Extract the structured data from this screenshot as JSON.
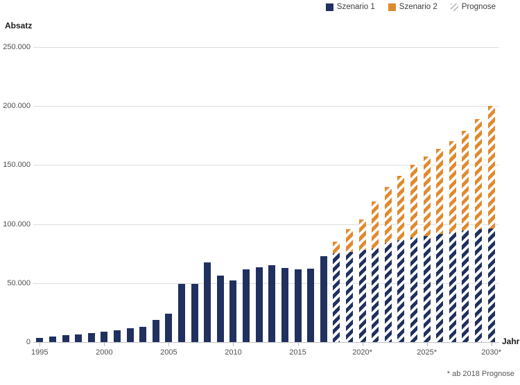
{
  "page": {
    "y_axis_title": "Absatz",
    "x_axis_title": "Jahr",
    "footnote": "* ab 2018 Prognose"
  },
  "legend": [
    {
      "label": "Szenario 1",
      "swatch": "scenario1"
    },
    {
      "label": "Szenario 2",
      "swatch": "scenario2"
    },
    {
      "label": "Prognose",
      "swatch": "hatch"
    }
  ],
  "colors": {
    "scenario1": "#20305f",
    "scenario2": "#e08a2e",
    "hatch_legend_stripe": "#b0b0b0",
    "gridline": "#dcdcdc",
    "axis_line": "#c4c4c4",
    "tick_text": "#4f4f4f"
  },
  "chart_data": {
    "type": "bar",
    "stacked": true,
    "title": "",
    "xlabel": "Jahr",
    "ylabel": "Absatz",
    "ylim": [
      0,
      250000
    ],
    "grid": true,
    "legend_position": "top-right",
    "x": [
      1995,
      1996,
      1997,
      1998,
      1999,
      2000,
      2001,
      2002,
      2003,
      2004,
      2005,
      2006,
      2007,
      2008,
      2009,
      2010,
      2011,
      2012,
      2013,
      2014,
      2015,
      2016,
      2017,
      2018,
      2019,
      2020,
      2021,
      2022,
      2023,
      2024,
      2025,
      2026,
      2027,
      2028,
      2029,
      2030
    ],
    "series": [
      {
        "name": "Szenario 1",
        "color_key": "scenario1",
        "values": [
          3500,
          4500,
          5700,
          6700,
          7600,
          8800,
          10200,
          11500,
          12700,
          19000,
          24000,
          49500,
          49500,
          67500,
          56500,
          52500,
          61500,
          63500,
          65000,
          63000,
          61500,
          62500,
          73000,
          75000,
          76500,
          78000,
          79000,
          84000,
          86000,
          88500,
          89500,
          91500,
          93000,
          94500,
          95500,
          96000
        ]
      },
      {
        "name": "Szenario 2",
        "color_key": "scenario2",
        "values": [
          0,
          0,
          0,
          0,
          0,
          0,
          0,
          0,
          0,
          0,
          0,
          0,
          0,
          0,
          0,
          0,
          0,
          0,
          0,
          0,
          0,
          0,
          0,
          10000,
          19000,
          26000,
          40000,
          47500,
          55000,
          61500,
          67500,
          72000,
          77000,
          84500,
          93500,
          104000
        ]
      }
    ],
    "forecast_from_year": 2018,
    "forecast_style": "diagonal-hatch",
    "forecast_note": "* ab 2018 Prognose",
    "y_tick_values": [
      0,
      50000,
      100000,
      150000,
      200000,
      250000
    ],
    "y_tick_labels": [
      "0",
      "50.000",
      "100.000",
      "150.000",
      "200.000",
      "250.000"
    ],
    "x_tick_years": [
      1995,
      2000,
      2005,
      2010,
      2015,
      2020,
      2025,
      2030
    ],
    "x_tick_labels": [
      "1995",
      "2000",
      "2005",
      "2010",
      "2015",
      "2020*",
      "2025*",
      "2030*"
    ]
  }
}
